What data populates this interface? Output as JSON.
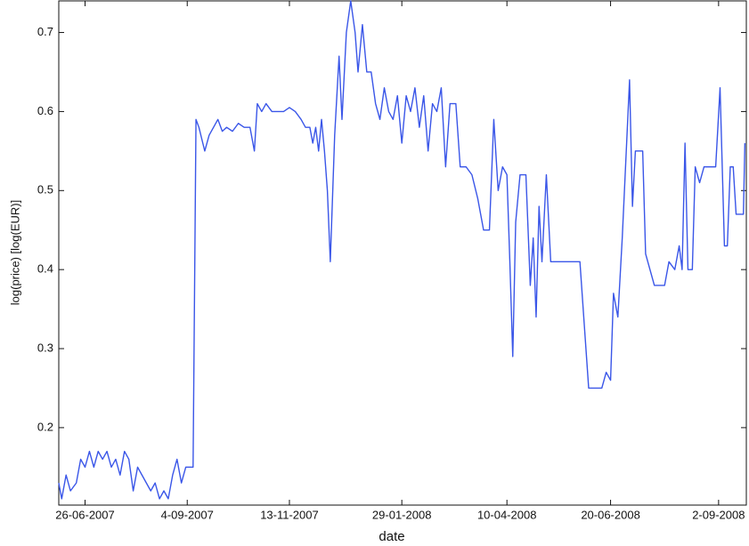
{
  "chart_data": {
    "type": "line",
    "x_label": "date",
    "y_label": "log(price) [log(EUR)]",
    "xlim": [
      "2007-06-08",
      "2008-09-21"
    ],
    "ylim": [
      0.102,
      0.74
    ],
    "xticks": [
      {
        "value": "2007-06-26",
        "label": "26-06-2007"
      },
      {
        "value": "2007-09-04",
        "label": "4-09-2007"
      },
      {
        "value": "2007-11-13",
        "label": "13-11-2007"
      },
      {
        "value": "2008-01-29",
        "label": "29-01-2008"
      },
      {
        "value": "2008-04-10",
        "label": "10-04-2008"
      },
      {
        "value": "2008-06-20",
        "label": "20-06-2008"
      },
      {
        "value": "2008-09-02",
        "label": "2-09-2008"
      }
    ],
    "yticks": [
      0.2,
      0.3,
      0.4,
      0.5,
      0.6,
      0.7
    ],
    "grid": false,
    "series": [
      {
        "color": "#3a56e8",
        "x": [
          "2007-06-08",
          "2007-06-10",
          "2007-06-13",
          "2007-06-16",
          "2007-06-20",
          "2007-06-23",
          "2007-06-26",
          "2007-06-29",
          "2007-07-02",
          "2007-07-05",
          "2007-07-08",
          "2007-07-11",
          "2007-07-14",
          "2007-07-17",
          "2007-07-20",
          "2007-07-23",
          "2007-07-26",
          "2007-07-29",
          "2007-08-01",
          "2007-08-04",
          "2007-08-07",
          "2007-08-10",
          "2007-08-13",
          "2007-08-16",
          "2007-08-19",
          "2007-08-22",
          "2007-08-25",
          "2007-08-28",
          "2007-08-31",
          "2007-09-03",
          "2007-09-06",
          "2007-09-08",
          "2007-09-10",
          "2007-09-12",
          "2007-09-16",
          "2007-09-19",
          "2007-09-22",
          "2007-09-25",
          "2007-09-28",
          "2007-10-01",
          "2007-10-05",
          "2007-10-09",
          "2007-10-13",
          "2007-10-17",
          "2007-10-20",
          "2007-10-22",
          "2007-10-25",
          "2007-10-28",
          "2007-11-01",
          "2007-11-05",
          "2007-11-09",
          "2007-11-13",
          "2007-11-17",
          "2007-11-21",
          "2007-11-24",
          "2007-11-27",
          "2007-11-29",
          "2007-12-01",
          "2007-12-03",
          "2007-12-05",
          "2007-12-07",
          "2007-12-09",
          "2007-12-11",
          "2007-12-14",
          "2007-12-17",
          "2007-12-19",
          "2007-12-22",
          "2007-12-25",
          "2007-12-28",
          "2007-12-30",
          "2008-01-02",
          "2008-01-05",
          "2008-01-08",
          "2008-01-11",
          "2008-01-14",
          "2008-01-17",
          "2008-01-20",
          "2008-01-23",
          "2008-01-26",
          "2008-01-29",
          "2008-02-01",
          "2008-02-04",
          "2008-02-07",
          "2008-02-10",
          "2008-02-13",
          "2008-02-16",
          "2008-02-19",
          "2008-02-22",
          "2008-02-25",
          "2008-02-28",
          "2008-03-02",
          "2008-03-06",
          "2008-03-09",
          "2008-03-13",
          "2008-03-17",
          "2008-03-21",
          "2008-03-25",
          "2008-03-29",
          "2008-04-01",
          "2008-04-04",
          "2008-04-07",
          "2008-04-10",
          "2008-04-12",
          "2008-04-14",
          "2008-04-16",
          "2008-04-19",
          "2008-04-23",
          "2008-04-26",
          "2008-04-28",
          "2008-04-30",
          "2008-05-02",
          "2008-05-04",
          "2008-05-07",
          "2008-05-10",
          "2008-05-20",
          "2008-05-30",
          "2008-06-02",
          "2008-06-05",
          "2008-06-14",
          "2008-06-17",
          "2008-06-20",
          "2008-06-22",
          "2008-06-25",
          "2008-06-28",
          "2008-07-01",
          "2008-07-03",
          "2008-07-05",
          "2008-07-07",
          "2008-07-12",
          "2008-07-14",
          "2008-07-17",
          "2008-07-20",
          "2008-07-27",
          "2008-07-30",
          "2008-08-03",
          "2008-08-06",
          "2008-08-08",
          "2008-08-10",
          "2008-08-12",
          "2008-08-15",
          "2008-08-17",
          "2008-08-20",
          "2008-08-23",
          "2008-08-28",
          "2008-08-31",
          "2008-09-03",
          "2008-09-06",
          "2008-09-08",
          "2008-09-10",
          "2008-09-12",
          "2008-09-14",
          "2008-09-17",
          "2008-09-19",
          "2008-09-20"
        ],
        "values": [
          0.13,
          0.11,
          0.14,
          0.12,
          0.13,
          0.16,
          0.15,
          0.17,
          0.15,
          0.17,
          0.16,
          0.17,
          0.15,
          0.16,
          0.14,
          0.17,
          0.16,
          0.12,
          0.15,
          0.14,
          0.13,
          0.12,
          0.13,
          0.11,
          0.12,
          0.11,
          0.14,
          0.16,
          0.13,
          0.15,
          0.15,
          0.15,
          0.59,
          0.58,
          0.55,
          0.57,
          0.58,
          0.59,
          0.575,
          0.58,
          0.575,
          0.585,
          0.58,
          0.58,
          0.55,
          0.61,
          0.6,
          0.61,
          0.6,
          0.6,
          0.6,
          0.605,
          0.6,
          0.59,
          0.58,
          0.58,
          0.56,
          0.58,
          0.55,
          0.59,
          0.55,
          0.5,
          0.41,
          0.57,
          0.67,
          0.59,
          0.7,
          0.74,
          0.7,
          0.65,
          0.71,
          0.65,
          0.65,
          0.61,
          0.59,
          0.63,
          0.6,
          0.59,
          0.62,
          0.56,
          0.62,
          0.6,
          0.63,
          0.58,
          0.62,
          0.55,
          0.61,
          0.6,
          0.63,
          0.53,
          0.61,
          0.61,
          0.53,
          0.53,
          0.52,
          0.49,
          0.45,
          0.45,
          0.59,
          0.5,
          0.53,
          0.52,
          0.41,
          0.29,
          0.46,
          0.52,
          0.52,
          0.38,
          0.44,
          0.34,
          0.48,
          0.41,
          0.52,
          0.41,
          0.41,
          0.41,
          0.33,
          0.25,
          0.25,
          0.27,
          0.26,
          0.37,
          0.34,
          0.44,
          0.56,
          0.64,
          0.48,
          0.55,
          0.55,
          0.42,
          0.4,
          0.38,
          0.38,
          0.41,
          0.4,
          0.43,
          0.4,
          0.56,
          0.4,
          0.4,
          0.53,
          0.51,
          0.53,
          0.53,
          0.53,
          0.63,
          0.43,
          0.43,
          0.53,
          0.53,
          0.47,
          0.47,
          0.47,
          0.56
        ]
      }
    ]
  }
}
